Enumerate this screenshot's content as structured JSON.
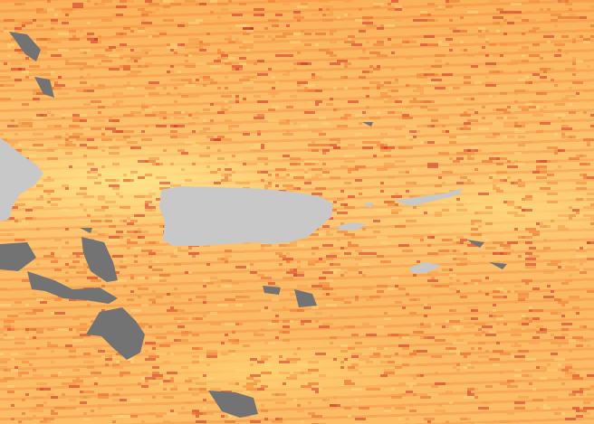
{
  "map": {
    "colors": {
      "land": "#c8c8c8",
      "no_data": "#737373",
      "low": "#ffe48a",
      "mid": "#fbb15a",
      "high": "#d0202a"
    }
  }
}
